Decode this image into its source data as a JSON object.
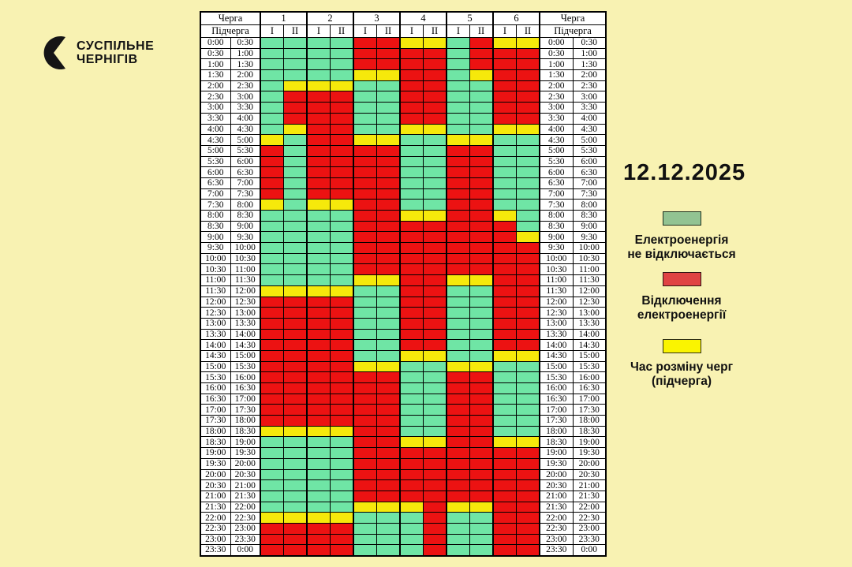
{
  "page": {
    "background": "#F8F2B2"
  },
  "logo": {
    "icon": "suspilne-crescent-icon",
    "line1": "СУСПІЛЬНЕ",
    "line2": "ЧЕРНІГІВ"
  },
  "date": "12.12.2025",
  "table": {
    "cherga_label": "Черга",
    "pidcherga_label": "Підчерга",
    "queues": [
      "1",
      "2",
      "3",
      "4",
      "5",
      "6"
    ],
    "sub_labels": [
      "І",
      "ІІ"
    ],
    "cell_colors": {
      "G": "#6FE5A5",
      "R": "#EC1212",
      "Y": "#F6E90B"
    },
    "time_slots": [
      [
        "0:00",
        "0:30"
      ],
      [
        "0:30",
        "1:00"
      ],
      [
        "1:00",
        "1:30"
      ],
      [
        "1:30",
        "2:00"
      ],
      [
        "2:00",
        "2:30"
      ],
      [
        "2:30",
        "3:00"
      ],
      [
        "3:00",
        "3:30"
      ],
      [
        "3:30",
        "4:00"
      ],
      [
        "4:00",
        "4:30"
      ],
      [
        "4:30",
        "5:00"
      ],
      [
        "5:00",
        "5:30"
      ],
      [
        "5:30",
        "6:00"
      ],
      [
        "6:00",
        "6:30"
      ],
      [
        "6:30",
        "7:00"
      ],
      [
        "7:00",
        "7:30"
      ],
      [
        "7:30",
        "8:00"
      ],
      [
        "8:00",
        "8:30"
      ],
      [
        "8:30",
        "9:00"
      ],
      [
        "9:00",
        "9:30"
      ],
      [
        "9:30",
        "10:00"
      ],
      [
        "10:00",
        "10:30"
      ],
      [
        "10:30",
        "11:00"
      ],
      [
        "11:00",
        "11:30"
      ],
      [
        "11:30",
        "12:00"
      ],
      [
        "12:00",
        "12:30"
      ],
      [
        "12:30",
        "13:00"
      ],
      [
        "13:00",
        "13:30"
      ],
      [
        "13:30",
        "14:00"
      ],
      [
        "14:00",
        "14:30"
      ],
      [
        "14:30",
        "15:00"
      ],
      [
        "15:00",
        "15:30"
      ],
      [
        "15:30",
        "16:00"
      ],
      [
        "16:00",
        "16:30"
      ],
      [
        "16:30",
        "17:00"
      ],
      [
        "17:00",
        "17:30"
      ],
      [
        "17:30",
        "18:00"
      ],
      [
        "18:00",
        "18:30"
      ],
      [
        "18:30",
        "19:00"
      ],
      [
        "19:00",
        "19:30"
      ],
      [
        "19:30",
        "20:00"
      ],
      [
        "20:00",
        "20:30"
      ],
      [
        "20:30",
        "21:00"
      ],
      [
        "21:00",
        "21:30"
      ],
      [
        "21:30",
        "22:00"
      ],
      [
        "22:00",
        "22:30"
      ],
      [
        "22:30",
        "23:00"
      ],
      [
        "23:00",
        "23:30"
      ],
      [
        "23:30",
        "0:00"
      ]
    ],
    "grid": [
      "GGGGRRYYGRYY",
      "GGGGRRRRGRRR",
      "GGGGRRRRGRRR",
      "GGGGYYRRGYRR",
      "GYYYGGRRGGRR",
      "GRRRGGRRGGRR",
      "GRRRGGRRGGRR",
      "GRRRGGRRGGRR",
      "GYRRGGYYGGYY",
      "YGRRYYGGYYGG",
      "RGRRRRGGRRGG",
      "RGRRRRGGRRGG",
      "RGRRRRGGRRGG",
      "RGRRRRGGRRGG",
      "RGRRRRGGRRGG",
      "YGYYRRGGRRGG",
      "GGGGRRYYRRYG",
      "GGGGRRRRRRRG",
      "GGGGRRRRRRRY",
      "GGGGRRRRRRRR",
      "GGGGRRRRRRRR",
      "GGGGRRRRRRRR",
      "GGGGYYRRYYRR",
      "YYYYGGRRGGRR",
      "RRRRGGRRGGRR",
      "RRRRGGRRGGRR",
      "RRRRGGRRGGRR",
      "RRRRGGRRGGRR",
      "RRRRGGRRGGRR",
      "RRRRGGYYGGYY",
      "RRRRYYGGYYGG",
      "RRRRRRGGRRGG",
      "RRRRRRGGRRGG",
      "RRRRRRGGRRGG",
      "RRRRRRGGRRGG",
      "RRRRRRGGRRGG",
      "YYYYRRGGRRGG",
      "GGGGRRYYRRYY",
      "GGGGRRRRRRRR",
      "GGGGRRRRRRRR",
      "GGGGRRRRRRRR",
      "GGGGRRRRRRRR",
      "GGGGRRRRRRRR",
      "GGGGYYYRYYRR",
      "YYYYGGGRGGRR",
      "RRRRGGGRGGRR",
      "RRRRGGGRGGRR",
      "RRRRGGGRGGRR"
    ]
  },
  "legend": {
    "items": [
      {
        "key": "G",
        "color": "#92C392",
        "label_lines": [
          "Електроенергія",
          "не відключається"
        ]
      },
      {
        "key": "R",
        "color": "#E04343",
        "label_lines": [
          "Відключення",
          "електроенергії"
        ]
      },
      {
        "key": "Y",
        "color": "#FAF400",
        "label_lines": [
          "Час розміну черг",
          "(підчерга)"
        ]
      }
    ]
  }
}
